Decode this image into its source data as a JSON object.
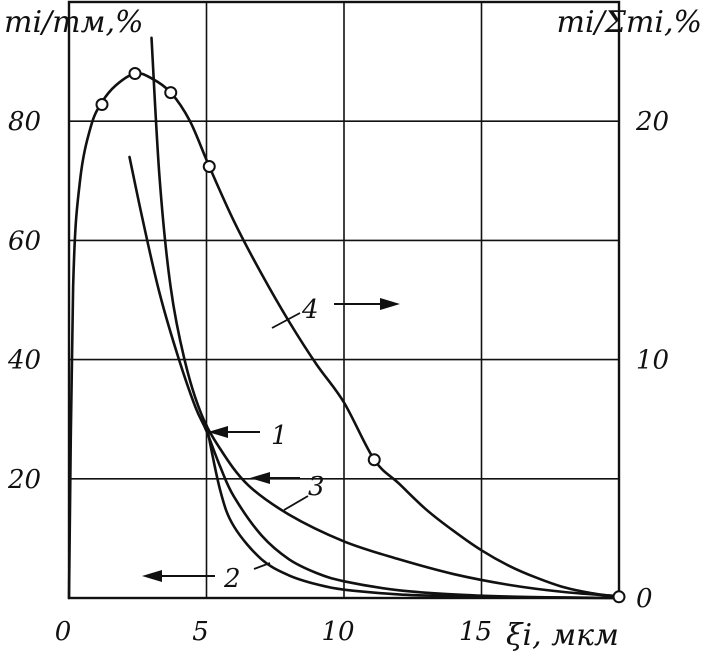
{
  "chart_data": {
    "type": "line",
    "title": "",
    "xlabel": "ξi, мкм",
    "ylabel_left": "mi/mм,%",
    "ylabel_right": "mi/Σmi,%",
    "xlim": [
      0,
      20
    ],
    "ylim_left": [
      0,
      100
    ],
    "ylim_right": [
      0,
      25
    ],
    "grid": true,
    "x_ticks": [
      {
        "value": 0,
        "label": "0"
      },
      {
        "value": 5,
        "label": "5"
      },
      {
        "value": 10,
        "label": "10"
      },
      {
        "value": 15,
        "label": "15"
      }
    ],
    "y_ticks_left": [
      {
        "value": 20,
        "label": "20"
      },
      {
        "value": 40,
        "label": "40"
      },
      {
        "value": 60,
        "label": "60"
      },
      {
        "value": 80,
        "label": "80"
      }
    ],
    "y_ticks_right": [
      {
        "value": 0,
        "label": "0"
      },
      {
        "value": 10,
        "label": "10"
      },
      {
        "value": 20,
        "label": "20"
      }
    ],
    "series": [
      {
        "label": "1",
        "axis": "left",
        "x": [
          3.0,
          3.3,
          3.7,
          4.2,
          4.8,
          5.5,
          6.5,
          8,
          10,
          12,
          14,
          16,
          18,
          20
        ],
        "y": [
          94,
          70,
          52,
          40,
          31,
          25,
          19,
          14,
          9.5,
          6.5,
          4,
          2.2,
          1,
          0.3
        ]
      },
      {
        "label": "2",
        "axis": "left",
        "x": [
          5.0,
          5.5,
          6,
          7,
          8,
          9,
          10,
          12,
          14,
          16,
          18,
          20
        ],
        "y": [
          29,
          18,
          12,
          6.5,
          3.8,
          2.3,
          1.4,
          0.6,
          0.3,
          0.1,
          0.05,
          0
        ],
        "markers": []
      },
      {
        "label": "3",
        "axis": "left",
        "x": [
          2.2,
          2.7,
          3.3,
          4.0,
          4.6,
          5.0,
          5.5,
          6.0,
          7.0,
          8.0,
          9.0,
          10.0,
          12.0,
          14.0,
          16.0,
          18.0,
          20.0
        ],
        "y": [
          74,
          63,
          51,
          40,
          32,
          28,
          22,
          17,
          10.5,
          6.5,
          4.2,
          2.8,
          1.3,
          0.6,
          0.25,
          0.1,
          0
        ],
        "markers": []
      },
      {
        "label": "4",
        "axis": "right",
        "x": [
          0,
          0.15,
          0.4,
          0.8,
          1.2,
          1.7,
          2.4,
          3.0,
          3.7,
          4.4,
          5.1,
          6,
          7,
          8,
          9,
          10,
          11.1,
          12,
          13,
          14,
          15,
          16,
          17,
          18,
          19,
          20
        ],
        "y": [
          0,
          13,
          17.5,
          19.8,
          20.8,
          21.5,
          22.0,
          21.8,
          21.2,
          20.0,
          18.1,
          15.8,
          13.6,
          11.6,
          9.8,
          8.2,
          5.8,
          4.8,
          3.7,
          2.8,
          2.0,
          1.35,
          0.85,
          0.45,
          0.2,
          0.05
        ],
        "markers": [
          {
            "x": 1.2,
            "y": 20.7
          },
          {
            "x": 2.4,
            "y": 22.0
          },
          {
            "x": 3.7,
            "y": 21.2
          },
          {
            "x": 5.1,
            "y": 18.1
          },
          {
            "x": 11.1,
            "y": 5.8
          },
          {
            "x": 20.0,
            "y": 0.05
          }
        ]
      }
    ]
  }
}
